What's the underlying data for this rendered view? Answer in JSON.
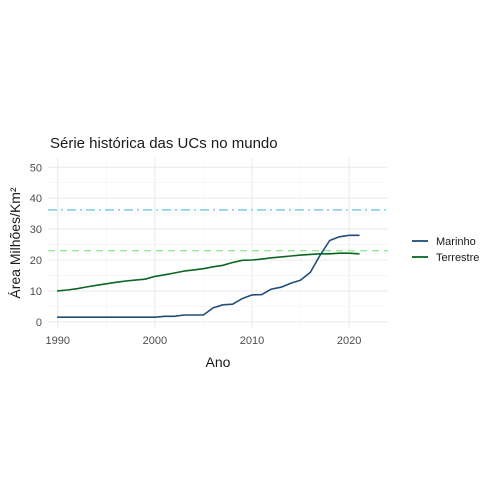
{
  "chart_data": {
    "type": "line",
    "title": "Série histórica das UCs no mundo",
    "xlabel": "Ano",
    "ylabel": "Área Milhões/Km²",
    "xlim": [
      1989,
      2024
    ],
    "ylim": [
      -2,
      53
    ],
    "xticks": [
      1990,
      2000,
      2010,
      2020
    ],
    "yticks": [
      0,
      10,
      20,
      30,
      40,
      50
    ],
    "grid": true,
    "legend_position": "right",
    "series": [
      {
        "name": "Marinho",
        "color": "#1f4e79",
        "x": [
          1990,
          1991,
          1992,
          1993,
          1994,
          1995,
          1996,
          1997,
          1998,
          1999,
          2000,
          2001,
          2002,
          2003,
          2004,
          2005,
          2006,
          2007,
          2008,
          2009,
          2010,
          2011,
          2012,
          2013,
          2014,
          2015,
          2016,
          2017,
          2018,
          2019,
          2020,
          2021
        ],
        "y": [
          1.5,
          1.5,
          1.5,
          1.5,
          1.5,
          1.5,
          1.5,
          1.5,
          1.5,
          1.5,
          1.5,
          1.8,
          1.8,
          2.2,
          2.2,
          2.2,
          4.5,
          5.5,
          5.7,
          7.5,
          8.7,
          8.8,
          10.6,
          11.2,
          12.5,
          13.5,
          16.0,
          21.5,
          26.3,
          27.5,
          28.0,
          28.0
        ]
      },
      {
        "name": "Terrestre",
        "color": "#0b6623",
        "x": [
          1990,
          1991,
          1992,
          1993,
          1994,
          1995,
          1996,
          1997,
          1998,
          1999,
          2000,
          2001,
          2002,
          2003,
          2004,
          2005,
          2006,
          2007,
          2008,
          2009,
          2010,
          2011,
          2012,
          2013,
          2014,
          2015,
          2016,
          2017,
          2018,
          2019,
          2020,
          2021
        ],
        "y": [
          10.0,
          10.3,
          10.7,
          11.3,
          11.8,
          12.3,
          12.8,
          13.2,
          13.5,
          13.8,
          14.7,
          15.2,
          15.8,
          16.4,
          16.8,
          17.2,
          17.8,
          18.3,
          19.2,
          19.9,
          20.0,
          20.3,
          20.7,
          21.0,
          21.3,
          21.6,
          21.8,
          22.0,
          22.0,
          22.2,
          22.2,
          22.0
        ]
      }
    ],
    "reference_lines": [
      {
        "y": 36.2,
        "color": "#6ec6e6",
        "style": "dashdot"
      },
      {
        "y": 23.0,
        "color": "#90ee90",
        "style": "dashed"
      }
    ]
  }
}
